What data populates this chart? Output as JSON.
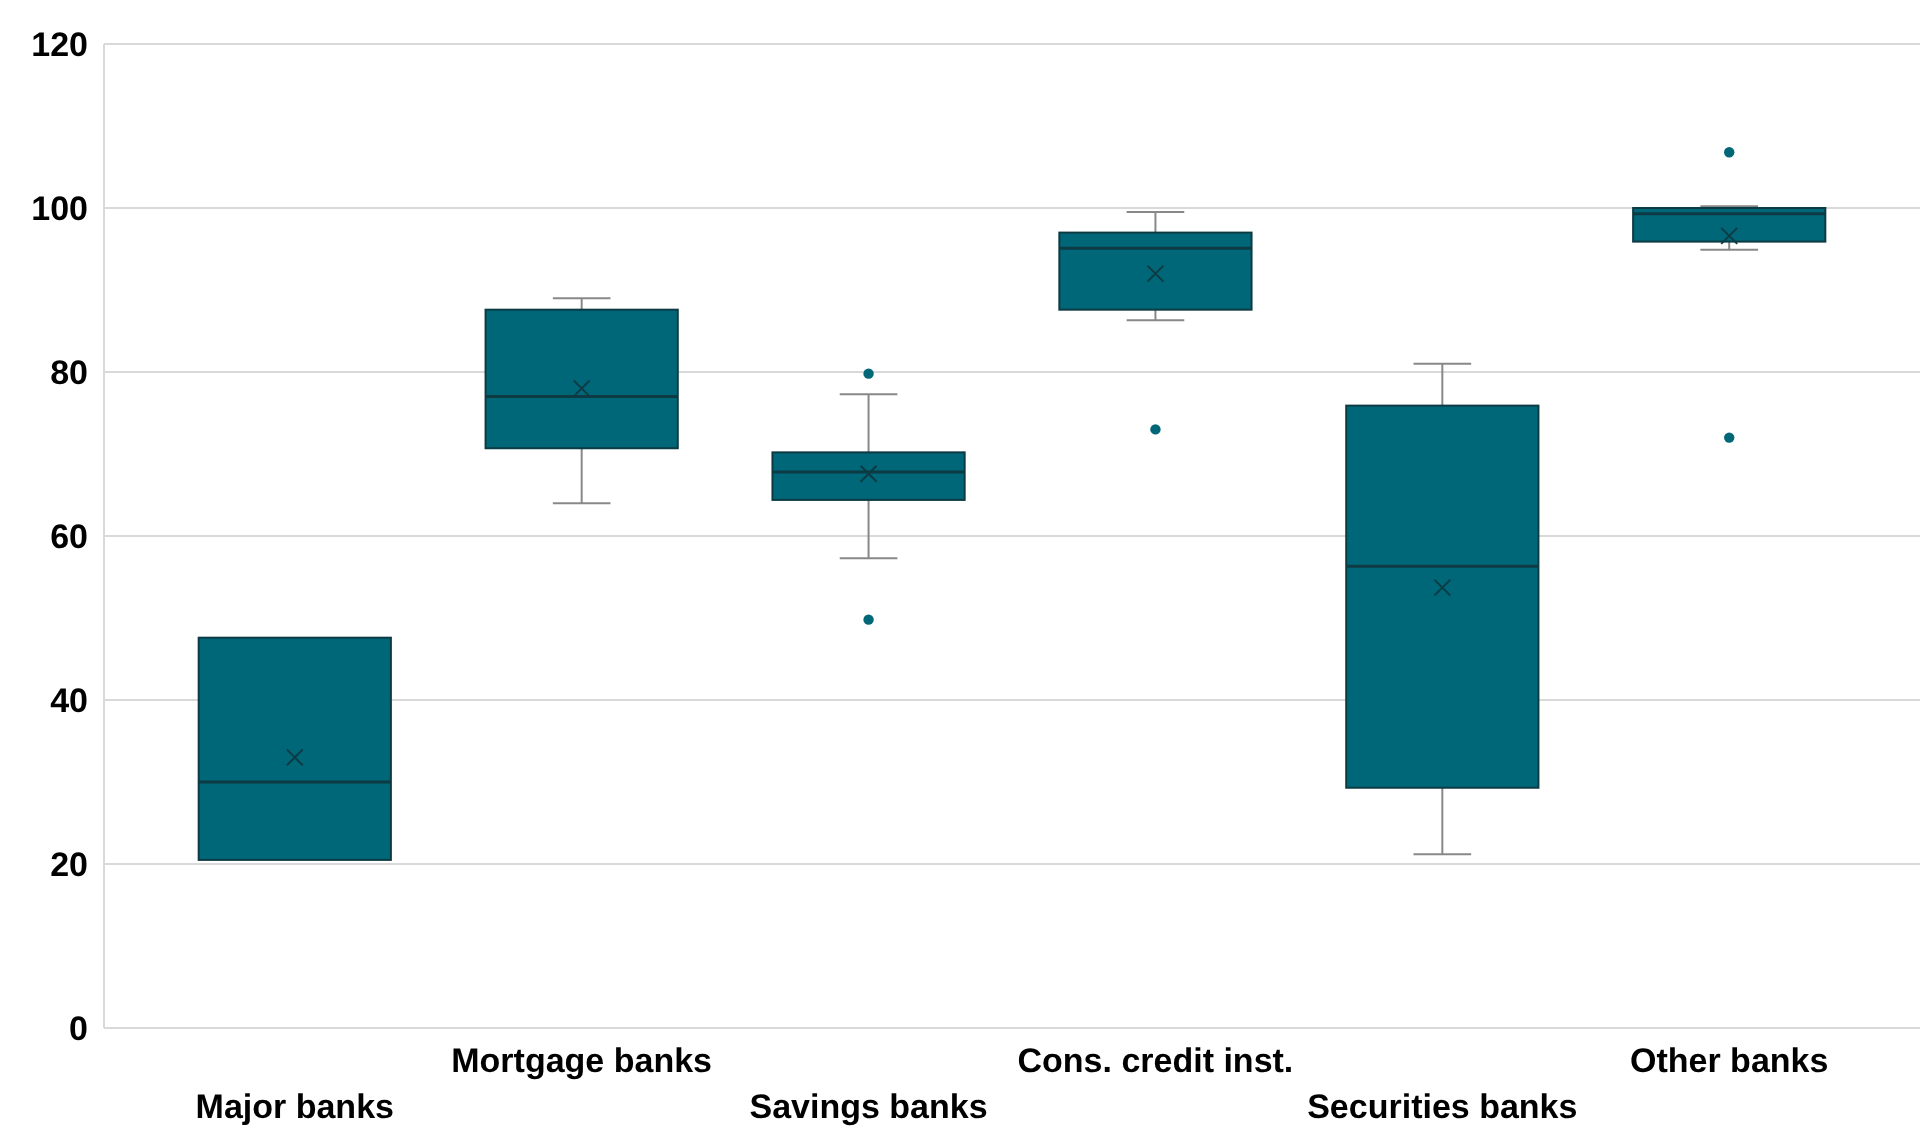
{
  "chart_data": {
    "type": "box",
    "categories": [
      "Major banks",
      "Mortgage banks",
      "Savings banks",
      "Cons. credit inst.",
      "Securities banks",
      "Other banks"
    ],
    "color": "#006778",
    "ylim": [
      0,
      120
    ],
    "yticks": [
      0,
      20,
      40,
      60,
      80,
      100,
      120
    ],
    "grid": "y",
    "boxes": [
      {
        "low": 20.5,
        "q1": 20.5,
        "median": 30,
        "q3": 47.6,
        "high": 47.6,
        "mean": 33
      },
      {
        "low": 64,
        "q1": 70.7,
        "median": 77,
        "q3": 87.6,
        "high": 89,
        "mean": 78
      },
      {
        "low": 57.3,
        "q1": 64.4,
        "median": 67.8,
        "q3": 70.2,
        "high": 77.3,
        "mean": 67.6,
        "outliers": [
          79.8,
          49.8
        ]
      },
      {
        "low": 86.3,
        "q1": 87.6,
        "median": 95.1,
        "q3": 97,
        "high": 99.5,
        "mean": 92,
        "outliers": [
          73
        ]
      },
      {
        "low": 21.2,
        "q1": 29.3,
        "median": 56.3,
        "q3": 75.9,
        "high": 81,
        "mean": 53.7
      },
      {
        "low": 94.9,
        "q1": 95.9,
        "median": 99.3,
        "q3": 100,
        "high": 100.2,
        "mean": 96.6,
        "outliers": [
          106.8,
          72
        ]
      }
    ]
  }
}
